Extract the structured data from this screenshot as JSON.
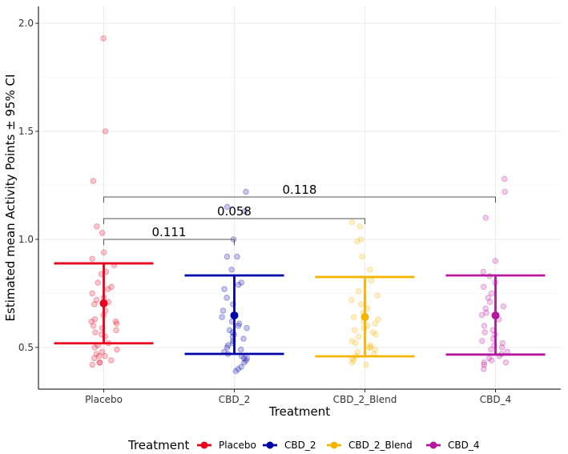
{
  "chart_data": {
    "type": "scatter",
    "title": "",
    "xlabel": "Treatment",
    "ylabel": "Estimated mean Activity Points ± 95% CI",
    "ylim": [
      0.307,
      2.078
    ],
    "yticks": [
      "0.5",
      "1.0",
      "1.5",
      "2.0"
    ],
    "grid": true,
    "categories": [
      "Placebo",
      "CBD_2",
      "CBD_2_Blend",
      "CBD_4"
    ],
    "colors": [
      "#E8001C",
      "#0000A8",
      "#F5B400",
      "#B5179E"
    ],
    "series": [
      {
        "name": "Placebo",
        "mean": 0.704,
        "ci_low": 0.519,
        "ci_high": 0.889,
        "points": [
          1.93,
          1.5,
          1.27,
          1.06,
          1.03,
          0.94,
          0.91,
          0.88,
          0.85,
          0.84,
          0.8,
          0.78,
          0.77,
          0.75,
          0.73,
          0.72,
          0.71,
          0.7,
          0.67,
          0.65,
          0.63,
          0.62,
          0.62,
          0.61,
          0.6,
          0.59,
          0.58,
          0.57,
          0.56,
          0.55,
          0.52,
          0.51,
          0.5,
          0.49,
          0.48,
          0.47,
          0.46,
          0.46,
          0.45,
          0.44,
          0.43,
          0.43,
          0.42
        ]
      },
      {
        "name": "CBD_2",
        "mean": 0.648,
        "ci_low": 0.47,
        "ci_high": 0.833,
        "points": [
          1.22,
          1.15,
          1.13,
          1.0,
          0.92,
          0.92,
          0.86,
          0.8,
          0.79,
          0.77,
          0.73,
          0.7,
          0.67,
          0.64,
          0.62,
          0.61,
          0.6,
          0.59,
          0.58,
          0.57,
          0.56,
          0.55,
          0.54,
          0.53,
          0.52,
          0.51,
          0.5,
          0.49,
          0.48,
          0.47,
          0.46,
          0.45,
          0.45,
          0.44,
          0.43,
          0.41,
          0.4,
          0.39
        ]
      },
      {
        "name": "CBD_2_Blend",
        "mean": 0.641,
        "ci_low": 0.459,
        "ci_high": 0.826,
        "points": [
          1.08,
          1.06,
          1.0,
          0.99,
          0.92,
          0.86,
          0.81,
          0.76,
          0.74,
          0.72,
          0.7,
          0.68,
          0.66,
          0.64,
          0.63,
          0.62,
          0.61,
          0.6,
          0.59,
          0.58,
          0.57,
          0.56,
          0.55,
          0.53,
          0.52,
          0.51,
          0.5,
          0.5,
          0.49,
          0.48,
          0.47,
          0.46,
          0.45,
          0.44,
          0.43,
          0.42
        ]
      },
      {
        "name": "CBD_4",
        "mean": 0.648,
        "ci_low": 0.467,
        "ci_high": 0.833,
        "points": [
          1.28,
          1.22,
          1.1,
          0.9,
          0.85,
          0.83,
          0.8,
          0.78,
          0.75,
          0.73,
          0.71,
          0.69,
          0.68,
          0.66,
          0.65,
          0.63,
          0.6,
          0.58,
          0.57,
          0.56,
          0.54,
          0.53,
          0.52,
          0.51,
          0.5,
          0.49,
          0.48,
          0.47,
          0.46,
          0.45,
          0.44,
          0.43,
          0.43,
          0.42,
          0.4
        ]
      }
    ],
    "comparisons": [
      {
        "from": "Placebo",
        "to": "CBD_2",
        "y": 1.0,
        "label": "0.111"
      },
      {
        "from": "Placebo",
        "to": "CBD_2_Blend",
        "y": 1.096,
        "label": "0.058"
      },
      {
        "from": "Placebo",
        "to": "CBD_4",
        "y": 1.196,
        "label": "0.118"
      }
    ],
    "legend": {
      "title": "Treatment",
      "placement": "bottom"
    }
  }
}
